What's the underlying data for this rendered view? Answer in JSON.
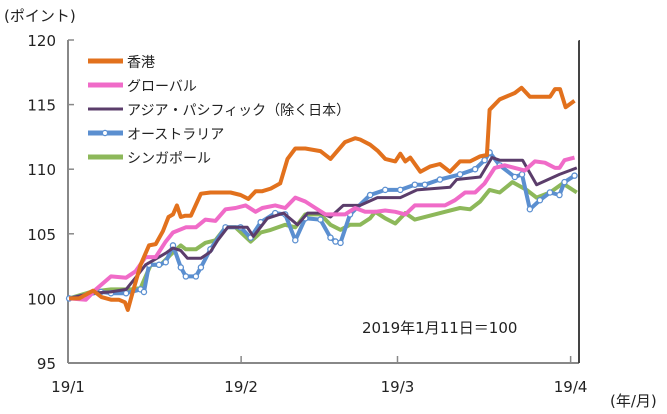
{
  "chart_data": {
    "type": "line",
    "ylabel": "(ポイント)",
    "xlabel": "(年/月)",
    "ylim": [
      95,
      120
    ],
    "yticks": [
      95,
      100,
      105,
      110,
      115,
      120
    ],
    "xlim": [
      0,
      91.5
    ],
    "xticks": [
      {
        "label": "19/1",
        "day": 0
      },
      {
        "label": "19/2",
        "day": 31
      },
      {
        "label": "19/3",
        "day": 59
      },
      {
        "label": "19/4",
        "day": 90
      }
    ],
    "annotation": "2019年1月11日＝100",
    "grid": false,
    "legend_position": "top-left",
    "series": [
      {
        "name": "香港",
        "color": "#E2711D",
        "markers": false,
        "points": [
          [
            0.2,
            100
          ],
          [
            2,
            100
          ],
          [
            4.5,
            100.6
          ],
          [
            6,
            100.1
          ],
          [
            7.7,
            99.9
          ],
          [
            9.1,
            99.9
          ],
          [
            10.2,
            99.7
          ],
          [
            10.7,
            99.1
          ],
          [
            11.6,
            100.5
          ],
          [
            13,
            102.6
          ],
          [
            14.5,
            104.1
          ],
          [
            15.7,
            104.2
          ],
          [
            17,
            105.2
          ],
          [
            18,
            106.3
          ],
          [
            18.8,
            106.5
          ],
          [
            19.5,
            107.2
          ],
          [
            20.2,
            106.3
          ],
          [
            21,
            106.4
          ],
          [
            22,
            106.4
          ],
          [
            23.8,
            108.1
          ],
          [
            25.5,
            108.2
          ],
          [
            27.3,
            108.2
          ],
          [
            29.1,
            108.2
          ],
          [
            30.9,
            108
          ],
          [
            32.3,
            107.7
          ],
          [
            33.6,
            108.3
          ],
          [
            34.8,
            108.3
          ],
          [
            36.3,
            108.5
          ],
          [
            38,
            108.9
          ],
          [
            39.3,
            110.8
          ],
          [
            40.7,
            111.6
          ],
          [
            42.5,
            111.6
          ],
          [
            45.2,
            111.4
          ],
          [
            47,
            110.8
          ],
          [
            49.6,
            112.1
          ],
          [
            51.4,
            112.4
          ],
          [
            52.3,
            112.3
          ],
          [
            54.1,
            111.9
          ],
          [
            55.5,
            111.4
          ],
          [
            56.8,
            110.8
          ],
          [
            58.6,
            110.6
          ],
          [
            59.5,
            111.2
          ],
          [
            60.4,
            110.6
          ],
          [
            61.3,
            110.9
          ],
          [
            63.1,
            109.8
          ],
          [
            64.8,
            110.2
          ],
          [
            66.6,
            110.4
          ],
          [
            68.4,
            109.8
          ],
          [
            70.2,
            110.6
          ],
          [
            72,
            110.6
          ],
          [
            73.8,
            111
          ],
          [
            75,
            111.1
          ],
          [
            75.5,
            114.6
          ],
          [
            77.3,
            115.4
          ],
          [
            80,
            115.9
          ],
          [
            81.2,
            116.3
          ],
          [
            82.7,
            115.6
          ],
          [
            86.3,
            115.6
          ],
          [
            87.2,
            116.2
          ],
          [
            88.1,
            116.2
          ],
          [
            89.1,
            114.8
          ],
          [
            90.7,
            115.3
          ]
        ]
      },
      {
        "name": "グローバル",
        "color": "#F06BC8",
        "markers": false,
        "points": [
          [
            0.2,
            100
          ],
          [
            3.2,
            99.9
          ],
          [
            5,
            100.7
          ],
          [
            7.7,
            101.7
          ],
          [
            10.4,
            101.6
          ],
          [
            12.1,
            102.1
          ],
          [
            13.9,
            103.2
          ],
          [
            15.7,
            103.2
          ],
          [
            17.5,
            104.4
          ],
          [
            18.8,
            105.1
          ],
          [
            21.1,
            105.5
          ],
          [
            22.9,
            105.5
          ],
          [
            24.6,
            106.1
          ],
          [
            26.4,
            106
          ],
          [
            28.2,
            106.9
          ],
          [
            30,
            107
          ],
          [
            31.8,
            107.2
          ],
          [
            33.6,
            106.7
          ],
          [
            34.8,
            107
          ],
          [
            37.1,
            107.2
          ],
          [
            38.9,
            107
          ],
          [
            40.7,
            107.8
          ],
          [
            42.5,
            107.5
          ],
          [
            44.3,
            107
          ],
          [
            46.1,
            106.5
          ],
          [
            47.9,
            106.5
          ],
          [
            49.6,
            106.5
          ],
          [
            51.4,
            107
          ],
          [
            53.2,
            106.7
          ],
          [
            55,
            106.7
          ],
          [
            56.8,
            106.8
          ],
          [
            58.6,
            106.7
          ],
          [
            60.4,
            106.5
          ],
          [
            62.1,
            107.2
          ],
          [
            64.8,
            107.2
          ],
          [
            67.5,
            107.2
          ],
          [
            69.3,
            107.6
          ],
          [
            71.1,
            108.2
          ],
          [
            72.9,
            108.2
          ],
          [
            74.6,
            108.9
          ],
          [
            76.4,
            110.1
          ],
          [
            78.2,
            110.3
          ],
          [
            80,
            110.1
          ],
          [
            81.8,
            109.9
          ],
          [
            83.6,
            110.6
          ],
          [
            85.4,
            110.5
          ],
          [
            87.2,
            110.1
          ],
          [
            88,
            110.1
          ],
          [
            88.9,
            110.7
          ],
          [
            90.7,
            110.9
          ]
        ]
      },
      {
        "name": "アジア・パシフィック（除く日本）",
        "color": "#5B3D6B",
        "markers": false,
        "points": [
          [
            0.2,
            100
          ],
          [
            4.1,
            100.4
          ],
          [
            7.7,
            100.5
          ],
          [
            10.4,
            100.7
          ],
          [
            12.1,
            101.6
          ],
          [
            13.9,
            102.6
          ],
          [
            17.5,
            103.5
          ],
          [
            18.8,
            103.9
          ],
          [
            20.2,
            103.7
          ],
          [
            21.4,
            103.1
          ],
          [
            23.8,
            103.1
          ],
          [
            25.5,
            103.6
          ],
          [
            26.8,
            104.5
          ],
          [
            28.6,
            105.5
          ],
          [
            32.1,
            105.5
          ],
          [
            33.2,
            104.8
          ],
          [
            35.7,
            106.2
          ],
          [
            38.6,
            106.6
          ],
          [
            41.1,
            105.7
          ],
          [
            42.9,
            106.6
          ],
          [
            45.2,
            106.6
          ],
          [
            47,
            106.3
          ],
          [
            49.3,
            107.2
          ],
          [
            52.3,
            107.2
          ],
          [
            55.4,
            107.8
          ],
          [
            59.5,
            107.8
          ],
          [
            62.5,
            108.4
          ],
          [
            68.4,
            108.6
          ],
          [
            69.6,
            109.2
          ],
          [
            73.8,
            109.4
          ],
          [
            75.9,
            110.9
          ],
          [
            77.3,
            110.7
          ],
          [
            81.4,
            110.7
          ],
          [
            83.9,
            108.8
          ],
          [
            88,
            109.6
          ],
          [
            91.1,
            110.1
          ]
        ]
      },
      {
        "name": "オーストラリア",
        "color": "#5B8FD0",
        "markers": true,
        "points": [
          [
            0.2,
            100
          ],
          [
            5.9,
            100.5
          ],
          [
            7.7,
            100.4
          ],
          [
            10.4,
            100.4
          ],
          [
            13,
            100.7
          ],
          [
            13.6,
            100.5
          ],
          [
            14.5,
            102.6
          ],
          [
            16.3,
            102.6
          ],
          [
            17.5,
            102.8
          ],
          [
            18.8,
            104.1
          ],
          [
            20.2,
            102.4
          ],
          [
            21.1,
            101.7
          ],
          [
            22.9,
            101.7
          ],
          [
            23.8,
            102.4
          ],
          [
            25.5,
            103.8
          ],
          [
            28.2,
            105.5
          ],
          [
            30.9,
            105.5
          ],
          [
            32.7,
            104.7
          ],
          [
            34.5,
            105.9
          ],
          [
            37.1,
            106.6
          ],
          [
            38.9,
            106.5
          ],
          [
            40.7,
            104.5
          ],
          [
            42.5,
            106.2
          ],
          [
            45.2,
            106.1
          ],
          [
            47,
            104.7
          ],
          [
            47.9,
            104.4
          ],
          [
            48.8,
            104.3
          ],
          [
            50.5,
            106.5
          ],
          [
            54.1,
            108
          ],
          [
            56.8,
            108.4
          ],
          [
            59.5,
            108.4
          ],
          [
            62.1,
            108.8
          ],
          [
            63.9,
            108.8
          ],
          [
            66.6,
            109.2
          ],
          [
            70.2,
            109.6
          ],
          [
            72.9,
            110
          ],
          [
            74.6,
            110.7
          ],
          [
            75.5,
            111.3
          ],
          [
            77.3,
            110.3
          ],
          [
            80,
            109.4
          ],
          [
            81.3,
            109.6
          ],
          [
            82.7,
            106.9
          ],
          [
            84.5,
            107.6
          ],
          [
            86.3,
            108.2
          ],
          [
            88,
            108
          ],
          [
            88.9,
            109
          ],
          [
            90.7,
            109.5
          ]
        ]
      },
      {
        "name": "シンガポール",
        "color": "#8DB85A",
        "markers": false,
        "points": [
          [
            0.2,
            100
          ],
          [
            4.1,
            100.5
          ],
          [
            7.7,
            100.7
          ],
          [
            11.3,
            100.7
          ],
          [
            13,
            100.8
          ],
          [
            14.8,
            102.6
          ],
          [
            16.6,
            102.6
          ],
          [
            18.4,
            103.4
          ],
          [
            20.2,
            104.1
          ],
          [
            21.1,
            103.8
          ],
          [
            22.9,
            103.8
          ],
          [
            24.6,
            104.3
          ],
          [
            26.4,
            104.5
          ],
          [
            28.2,
            105.5
          ],
          [
            30,
            105.5
          ],
          [
            32.7,
            104.4
          ],
          [
            34.5,
            105.1
          ],
          [
            36.3,
            105.3
          ],
          [
            38.9,
            105.7
          ],
          [
            40.7,
            105.5
          ],
          [
            42.5,
            106.5
          ],
          [
            45.2,
            106.5
          ],
          [
            47,
            105.7
          ],
          [
            48.8,
            105.3
          ],
          [
            50.5,
            105.7
          ],
          [
            52.3,
            105.7
          ],
          [
            54.1,
            106.2
          ],
          [
            55,
            106.7
          ],
          [
            56.8,
            106.2
          ],
          [
            58.6,
            105.8
          ],
          [
            60.4,
            106.6
          ],
          [
            62.1,
            106.1
          ],
          [
            64.8,
            106.4
          ],
          [
            67.5,
            106.7
          ],
          [
            70.2,
            107
          ],
          [
            72,
            106.9
          ],
          [
            73.8,
            107.5
          ],
          [
            75.5,
            108.4
          ],
          [
            77.3,
            108.2
          ],
          [
            79.6,
            109
          ],
          [
            82.1,
            108.4
          ],
          [
            83.9,
            107.8
          ],
          [
            86.3,
            108.2
          ],
          [
            88.6,
            108.9
          ],
          [
            91.1,
            108.2
          ]
        ]
      }
    ]
  }
}
